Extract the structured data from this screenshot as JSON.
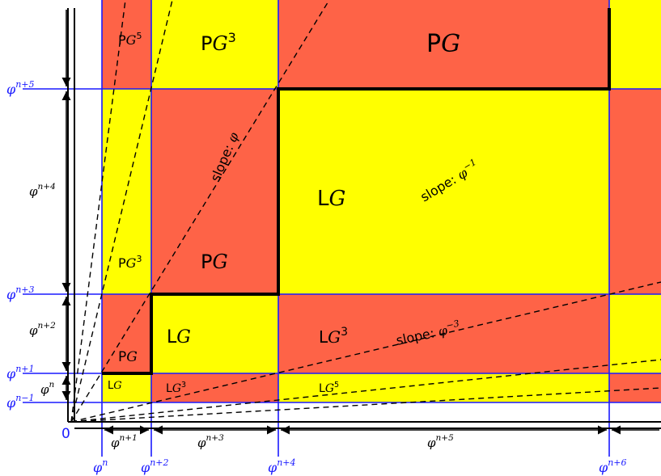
{
  "colors": {
    "red": "#fe6347",
    "yellow": "#ffff00",
    "grid_blue": "#1a1aff",
    "stair": "#000000"
  },
  "origin_label": "0",
  "x_axis_labels": [
    {
      "base": "φ",
      "sup": "n"
    },
    {
      "base": "φ",
      "sup": "n+2"
    },
    {
      "base": "φ",
      "sup": "n+4"
    },
    {
      "base": "φ",
      "sup": "n+6"
    }
  ],
  "y_axis_labels": [
    {
      "base": "φ",
      "sup": "n−1"
    },
    {
      "base": "φ",
      "sup": "n+1"
    },
    {
      "base": "φ",
      "sup": "n+3"
    },
    {
      "base": "φ",
      "sup": "n+5"
    }
  ],
  "width_dims": [
    {
      "base": "φ",
      "sup": "n+1"
    },
    {
      "base": "φ",
      "sup": "n+3"
    },
    {
      "base": "φ",
      "sup": "n+5"
    }
  ],
  "height_dims": [
    {
      "base": "φ",
      "sup": "n"
    },
    {
      "base": "φ",
      "sup": "n+2"
    },
    {
      "base": "φ",
      "sup": "n+4"
    }
  ],
  "regions": [
    {
      "prefix": "P",
      "var": "G",
      "sup": "5"
    },
    {
      "prefix": "P",
      "var": "G",
      "sup": "3"
    },
    {
      "prefix": "P",
      "var": "G",
      "sup": ""
    },
    {
      "prefix": "P",
      "var": "G",
      "sup": "3"
    },
    {
      "prefix": "P",
      "var": "G",
      "sup": ""
    },
    {
      "prefix": "L",
      "var": "G",
      "sup": ""
    },
    {
      "prefix": "P",
      "var": "G",
      "sup": ""
    },
    {
      "prefix": "L",
      "var": "G",
      "sup": ""
    },
    {
      "prefix": "L",
      "var": "G",
      "sup": "3"
    },
    {
      "prefix": "L",
      "var": "G",
      "sup": ""
    },
    {
      "prefix": "L",
      "var": "G",
      "sup": "3"
    },
    {
      "prefix": "L",
      "var": "G",
      "sup": "5"
    }
  ],
  "slope_labels": [
    {
      "text": "slope: ",
      "base": "φ",
      "sup": ""
    },
    {
      "text": "slope: ",
      "base": "φ",
      "sup": "−1"
    },
    {
      "text": "slope: ",
      "base": "φ",
      "sup": "−3"
    }
  ]
}
